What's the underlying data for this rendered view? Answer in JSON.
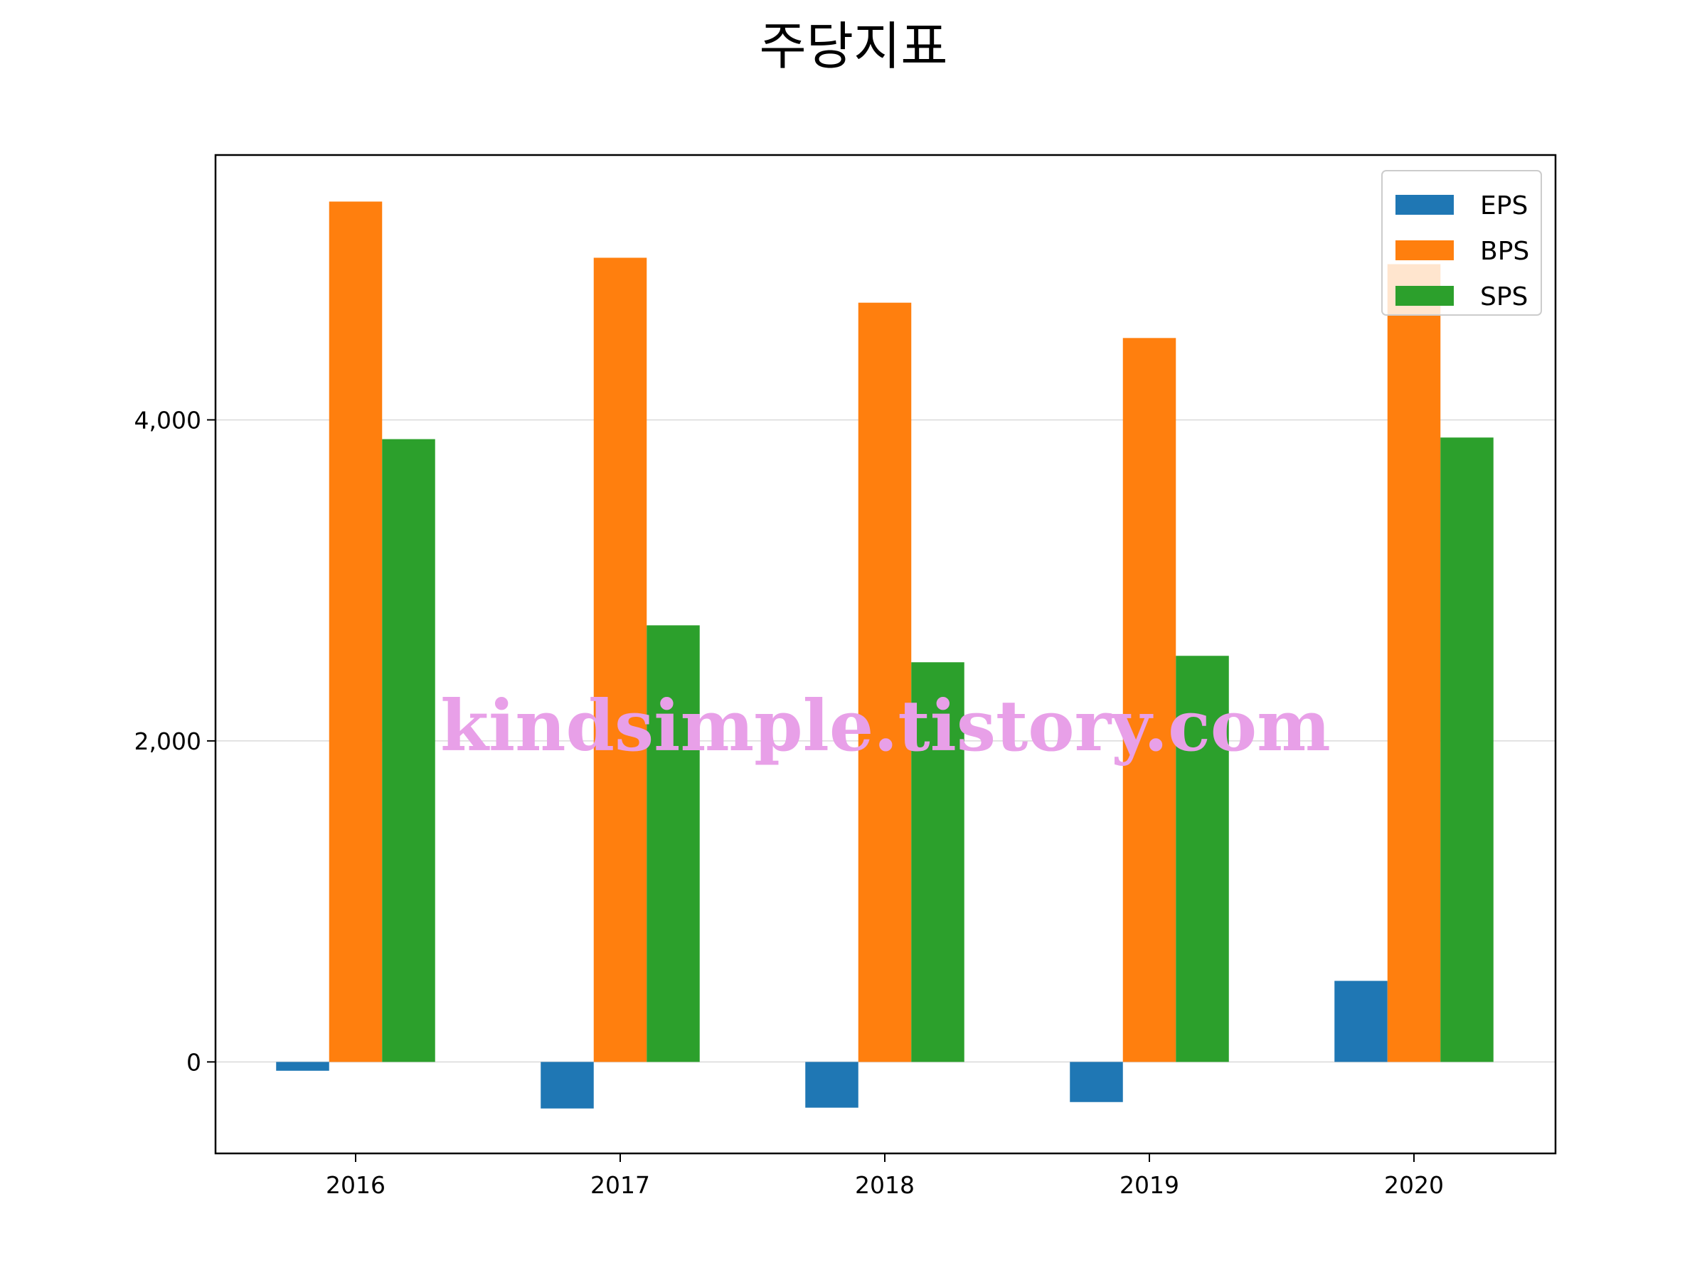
{
  "chart_data": {
    "type": "bar",
    "title": "주당지표",
    "xlabel": "",
    "ylabel": "",
    "categories": [
      "2016",
      "2017",
      "2018",
      "2019",
      "2020"
    ],
    "series": [
      {
        "name": "EPS",
        "color": "#1f77b4",
        "values": [
          -55,
          -290,
          -285,
          -250,
          505
        ]
      },
      {
        "name": "BPS",
        "color": "#ff7f0e",
        "values": [
          5360,
          5010,
          4730,
          4510,
          4970
        ]
      },
      {
        "name": "SPS",
        "color": "#2ca02c",
        "values": [
          3880,
          2720,
          2490,
          2530,
          3890
        ]
      }
    ],
    "ylim": [
      -570,
      5650
    ],
    "yticks": [
      0,
      2000,
      4000
    ],
    "ytick_labels": [
      "0",
      "2,000",
      "4,000"
    ],
    "grid": "horizontal",
    "legend_position": "top-right"
  },
  "watermark": "kindsimple.tistory.com"
}
